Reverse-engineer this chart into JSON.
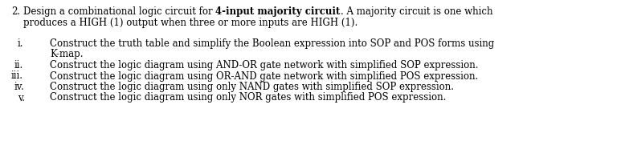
{
  "background_color": "#ffffff",
  "fig_width": 7.73,
  "fig_height": 1.81,
  "dpi": 100,
  "font_family": "DejaVu Serif",
  "font_size": 8.5,
  "main_number": "2.",
  "main_text_normal1": "Design a combinational logic circuit for ",
  "main_text_bold": "4-input majority circuit",
  "main_text_normal2": ". A majority circuit is one which",
  "main_line2": "produces a HIGH (1) output when three or more inputs are HIGH (1).",
  "items": [
    {
      "label": "i.",
      "lines": [
        "Construct the truth table and simplify the Boolean expression into SOP and POS forms using",
        "K-map."
      ]
    },
    {
      "label": "ii.",
      "lines": [
        "Construct the logic diagram using AND-OR gate network with simplified SOP expression."
      ]
    },
    {
      "label": "iii.",
      "lines": [
        "Construct the logic diagram using OR-AND gate network with simplified POS expression."
      ]
    },
    {
      "label": "iv.",
      "lines": [
        "Construct the logic diagram using only NAND gates with simplified SOP expression."
      ]
    },
    {
      "label": "v.",
      "lines": [
        "Construct the logic diagram using only NOR gates with simplified POS expression."
      ]
    }
  ]
}
